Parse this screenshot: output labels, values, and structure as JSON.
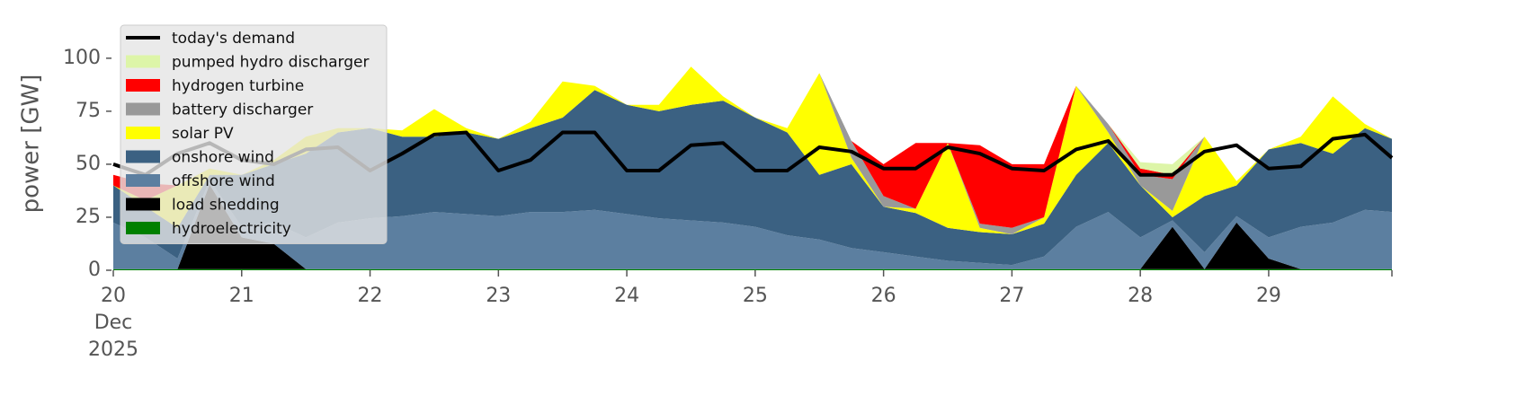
{
  "chart_data": {
    "type": "stacked-area",
    "y_label": "power [GW]",
    "x": [
      20,
      20.25,
      20.5,
      20.75,
      21,
      21.25,
      21.5,
      21.75,
      22,
      22.25,
      22.5,
      22.75,
      23,
      23.25,
      23.5,
      23.75,
      24,
      24.25,
      24.5,
      24.75,
      25,
      25.25,
      25.5,
      25.75,
      26,
      26.25,
      26.5,
      26.75,
      27,
      27.25,
      27.5,
      27.75,
      28,
      28.25,
      28.5,
      28.75,
      29,
      29.25,
      29.5,
      29.75,
      29.96
    ],
    "xlim": [
      20,
      29.96
    ],
    "xticks": [
      20,
      21,
      22,
      23,
      24,
      25,
      26,
      27,
      28,
      29
    ],
    "xtick_sublabels": [
      "Dec",
      "2025"
    ],
    "ylim": [
      0,
      119
    ],
    "yticks": [
      0,
      25,
      50,
      75,
      100
    ],
    "legend": "upper left",
    "series": [
      {
        "name": "hydroelectricity",
        "color": "#008000",
        "values": [
          0.5,
          0.5,
          0.5,
          0.5,
          0.5,
          0.5,
          0.5,
          0.5,
          0.5,
          0.5,
          0.5,
          0.5,
          0.5,
          0.5,
          0.5,
          0.5,
          0.5,
          0.5,
          0.5,
          0.5,
          0.5,
          0.5,
          0.5,
          0.5,
          0.5,
          0.5,
          0.5,
          0.5,
          0.5,
          0.5,
          0.5,
          0.5,
          0.5,
          0.5,
          0.5,
          0.5,
          0.5,
          0.5,
          0.5,
          0.5,
          0.5
        ]
      },
      {
        "name": "load shedding",
        "color": "#000000",
        "values": [
          0,
          0,
          0,
          40,
          15,
          12,
          0,
          0,
          0,
          0,
          0,
          0,
          0,
          0,
          0,
          0,
          0,
          0,
          0,
          0,
          0,
          0,
          0,
          0,
          0,
          0,
          0,
          0,
          0,
          0,
          0,
          0,
          0,
          20,
          0,
          22,
          5,
          0,
          0,
          0,
          0
        ]
      },
      {
        "name": "offshore wind",
        "color": "#5c7fa0",
        "values": [
          22,
          15,
          5,
          2,
          5,
          10,
          15,
          22,
          24,
          25,
          27,
          26,
          25,
          27,
          27,
          28,
          26,
          24,
          23,
          22,
          20,
          16,
          14,
          10,
          8,
          6,
          4,
          3,
          2,
          6,
          20,
          27,
          15,
          3,
          8,
          3,
          10,
          20,
          22,
          28,
          27
        ]
      },
      {
        "name": "onshore wind",
        "color": "#3b6182",
        "values": [
          17.5,
          14.5,
          14.5,
          2.5,
          24.5,
          27.5,
          39.5,
          42.5,
          42.5,
          37.5,
          35.5,
          38.5,
          36.5,
          39.5,
          44.5,
          56.5,
          51.5,
          50.5,
          54.5,
          57.5,
          51.5,
          48.5,
          30.5,
          39.5,
          21.5,
          20.5,
          15.5,
          14.5,
          14.5,
          15.5,
          24.5,
          32.5,
          24.5,
          1.5,
          26.5,
          14.5,
          41.5,
          39.5,
          32.5,
          38.5,
          34.5
        ]
      },
      {
        "name": "solar PV",
        "color": "#ffff00",
        "values": [
          0,
          3,
          20,
          3,
          0,
          2,
          8,
          2,
          0,
          3,
          13,
          2,
          0,
          3,
          17,
          2,
          0,
          3,
          18,
          2,
          0,
          2,
          48,
          3,
          0,
          2,
          40,
          2,
          0,
          3,
          42,
          5,
          0,
          3,
          28,
          2,
          0,
          3,
          27,
          2,
          0
        ]
      },
      {
        "name": "battery discharger",
        "color": "#999999",
        "values": [
          0,
          0,
          0,
          0,
          0,
          0,
          0,
          0,
          0,
          0,
          0,
          0,
          0,
          0,
          0,
          0,
          0,
          0,
          0,
          0,
          0,
          0,
          0,
          8,
          5,
          0,
          0,
          2,
          3,
          0,
          0,
          4,
          5,
          15,
          0,
          0,
          0,
          0,
          0,
          0,
          0
        ]
      },
      {
        "name": "hydrogen turbine",
        "color": "#ff0000",
        "values": [
          5,
          8,
          0,
          0,
          0,
          0,
          0,
          0,
          0,
          0,
          0,
          0,
          0,
          0,
          0,
          0,
          0,
          0,
          0,
          0,
          0,
          0,
          0,
          0,
          15,
          31,
          0,
          37,
          30,
          25,
          0,
          0,
          3,
          2,
          0,
          0,
          0,
          0,
          0,
          0,
          0
        ]
      },
      {
        "name": "pumped hydro discharger",
        "color": "#ddf5a8",
        "values": [
          0,
          0,
          0,
          0,
          0,
          0,
          0,
          0,
          0,
          0,
          0,
          0,
          0,
          0,
          0,
          0,
          0,
          0,
          0,
          0,
          0,
          0,
          0,
          0,
          0,
          0,
          0,
          0,
          0,
          0,
          0,
          0,
          3,
          5,
          0,
          0,
          0,
          0,
          0,
          0,
          0
        ]
      }
    ],
    "line": {
      "name": "today's demand",
      "color": "#000000",
      "values": [
        50,
        45,
        55,
        60,
        52,
        50,
        57,
        58,
        47,
        55,
        64,
        65,
        47,
        52,
        65,
        65,
        47,
        47,
        59,
        60,
        47,
        47,
        58,
        56,
        48,
        48,
        58,
        55,
        48,
        47,
        57,
        61,
        45,
        45,
        56,
        59,
        48,
        49,
        62,
        64,
        53
      ]
    }
  }
}
